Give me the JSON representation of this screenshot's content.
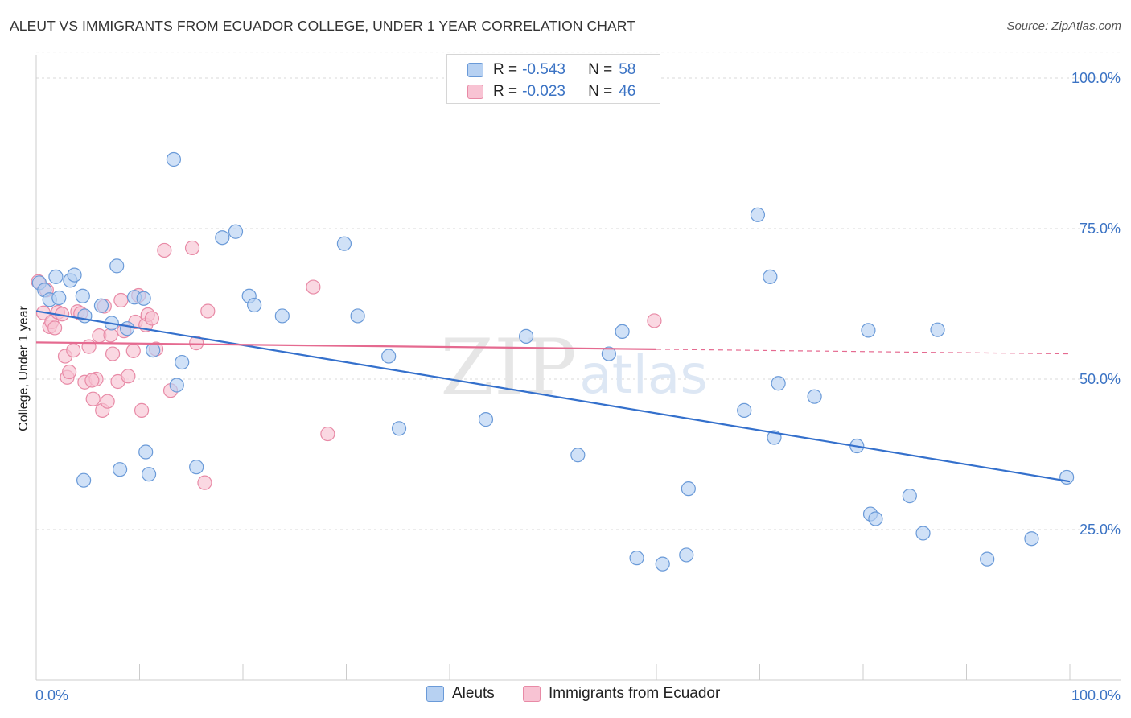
{
  "title": "ALEUT VS IMMIGRANTS FROM ECUADOR COLLEGE, UNDER 1 YEAR CORRELATION CHART",
  "source": "Source: ZipAtlas.com",
  "watermark": {
    "zip": "ZIP",
    "atlas": "atlas"
  },
  "legend_top": [
    {
      "r_label": "R =",
      "r_value": "-0.543",
      "n_label": "N =",
      "n_value": "58"
    },
    {
      "r_label": "R =",
      "r_value": "-0.023",
      "n_label": "N =",
      "n_value": "46"
    }
  ],
  "legend_bottom": {
    "series1": "Aleuts",
    "series2": "Immigrants from Ecuador"
  },
  "colors": {
    "blue_fill": "#b7d1f2",
    "blue_stroke": "#6a9ad8",
    "blue_line": "#3470cc",
    "pink_fill": "#f8c3d3",
    "pink_stroke": "#e88aa6",
    "pink_line": "#e56a90",
    "grid": "#d9d9d9",
    "axis_label": "#3b73c4"
  },
  "chart_data": {
    "type": "scatter",
    "title": "ALEUT VS IMMIGRANTS FROM ECUADOR COLLEGE, UNDER 1 YEAR CORRELATION CHART",
    "xlabel": "",
    "ylabel": "College, Under 1 year",
    "xlim": [
      0,
      100
    ],
    "ylim": [
      0,
      105
    ],
    "x_tick_labels": [
      "0.0%",
      "100.0%"
    ],
    "y_ticks": [
      25,
      50,
      75,
      100
    ],
    "y_tick_labels": [
      "25.0%",
      "50.0%",
      "75.0%",
      "100.0%"
    ],
    "series": [
      {
        "name": "Aleuts",
        "r": -0.543,
        "n": 58,
        "trend": {
          "x": [
            0,
            100
          ],
          "y": [
            61.3,
            33.0
          ],
          "dashed_from": null
        },
        "points": [
          [
            0.3,
            66.0
          ],
          [
            0.8,
            64.8
          ],
          [
            1.3,
            63.2
          ],
          [
            1.9,
            67.0
          ],
          [
            2.2,
            63.5
          ],
          [
            3.3,
            66.4
          ],
          [
            3.7,
            67.3
          ],
          [
            4.5,
            63.8
          ],
          [
            4.7,
            60.5
          ],
          [
            6.3,
            62.2
          ],
          [
            7.3,
            59.3
          ],
          [
            7.8,
            68.8
          ],
          [
            8.8,
            58.4
          ],
          [
            9.5,
            63.6
          ],
          [
            11.3,
            54.8
          ],
          [
            13.3,
            86.5
          ],
          [
            13.6,
            49.0
          ],
          [
            14.1,
            52.8
          ],
          [
            15.5,
            35.4
          ],
          [
            18.0,
            73.5
          ],
          [
            19.3,
            74.5
          ],
          [
            20.6,
            63.8
          ],
          [
            21.1,
            62.3
          ],
          [
            23.8,
            60.5
          ],
          [
            29.8,
            72.5
          ],
          [
            31.1,
            60.5
          ],
          [
            34.1,
            53.8
          ],
          [
            35.1,
            41.8
          ],
          [
            43.5,
            43.3
          ],
          [
            47.4,
            57.1
          ],
          [
            52.4,
            37.4
          ],
          [
            55.4,
            54.2
          ],
          [
            56.7,
            57.9
          ],
          [
            58.1,
            20.3
          ],
          [
            60.6,
            19.3
          ],
          [
            62.9,
            20.8
          ],
          [
            63.1,
            31.8
          ],
          [
            68.5,
            44.8
          ],
          [
            69.8,
            77.3
          ],
          [
            71.0,
            67.0
          ],
          [
            71.4,
            40.3
          ],
          [
            71.8,
            49.3
          ],
          [
            75.3,
            47.1
          ],
          [
            79.4,
            38.9
          ],
          [
            80.5,
            58.1
          ],
          [
            80.7,
            27.6
          ],
          [
            81.2,
            26.8
          ],
          [
            84.5,
            30.6
          ],
          [
            85.8,
            24.4
          ],
          [
            87.2,
            58.2
          ],
          [
            92.0,
            20.1
          ],
          [
            96.3,
            23.5
          ],
          [
            99.7,
            33.7
          ],
          [
            8.1,
            35.0
          ],
          [
            4.6,
            33.2
          ],
          [
            10.6,
            37.9
          ],
          [
            10.9,
            34.2
          ],
          [
            10.4,
            63.4
          ]
        ]
      },
      {
        "name": "Immigrants from Ecuador",
        "r": -0.023,
        "n": 46,
        "trend": {
          "x": [
            0,
            100
          ],
          "y": [
            56.1,
            54.2
          ],
          "dashed_from": 60
        },
        "points": [
          [
            0.2,
            66.2
          ],
          [
            0.7,
            61.0
          ],
          [
            1.0,
            64.8
          ],
          [
            1.3,
            58.7
          ],
          [
            1.5,
            59.5
          ],
          [
            1.8,
            58.5
          ],
          [
            2.1,
            61.1
          ],
          [
            2.5,
            60.8
          ],
          [
            2.8,
            53.8
          ],
          [
            3.0,
            50.3
          ],
          [
            3.2,
            51.2
          ],
          [
            3.6,
            54.8
          ],
          [
            4.0,
            61.2
          ],
          [
            4.3,
            60.9
          ],
          [
            4.7,
            49.5
          ],
          [
            5.1,
            55.4
          ],
          [
            5.5,
            46.7
          ],
          [
            5.8,
            50.0
          ],
          [
            6.1,
            57.2
          ],
          [
            6.4,
            44.8
          ],
          [
            6.6,
            62.1
          ],
          [
            6.9,
            46.3
          ],
          [
            7.2,
            57.3
          ],
          [
            7.4,
            54.2
          ],
          [
            7.9,
            49.6
          ],
          [
            8.2,
            63.1
          ],
          [
            8.5,
            58.0
          ],
          [
            8.9,
            50.5
          ],
          [
            9.4,
            54.7
          ],
          [
            9.6,
            59.5
          ],
          [
            9.9,
            63.9
          ],
          [
            10.2,
            44.8
          ],
          [
            10.6,
            59.0
          ],
          [
            10.8,
            60.7
          ],
          [
            11.2,
            60.1
          ],
          [
            11.6,
            55.0
          ],
          [
            12.4,
            71.4
          ],
          [
            13.0,
            48.1
          ],
          [
            15.1,
            71.8
          ],
          [
            15.5,
            56.0
          ],
          [
            16.6,
            61.3
          ],
          [
            16.3,
            32.8
          ],
          [
            26.8,
            65.3
          ],
          [
            28.2,
            40.9
          ],
          [
            59.8,
            59.7
          ],
          [
            5.4,
            49.8
          ]
        ]
      }
    ]
  }
}
